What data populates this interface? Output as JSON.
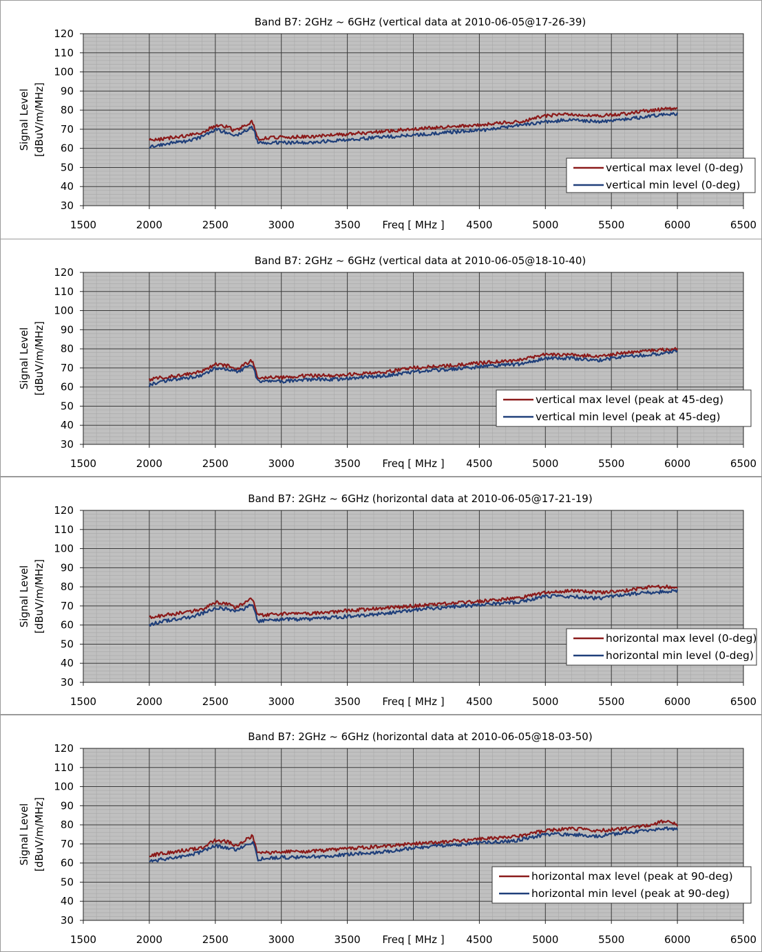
{
  "chart_data": [
    {
      "type": "line",
      "title": "Band B7: 2GHz ~ 6GHz (vertical data at 2010-06-05@17-26-39)",
      "xlabel": "Freq [ MHz ]",
      "ylabel_lines": [
        "Signal Level",
        "[dBuV/m/MHz]"
      ],
      "xlim": [
        1500,
        6500
      ],
      "ylim": [
        30,
        120
      ],
      "xticks": [
        "1500",
        "2000",
        "2500",
        "3000",
        "3500",
        "4500",
        "5000",
        "5500",
        "6000",
        "6500"
      ],
      "yticks": [
        "120",
        "110",
        "100",
        "90",
        "80",
        "70",
        "60",
        "50",
        "40",
        "30"
      ],
      "grid": true,
      "legend_position": "bottom-right",
      "series": [
        {
          "name": "vertical max level (0-deg)",
          "color": "#8b1a1a",
          "x": [
            2000,
            2100,
            2200,
            2300,
            2400,
            2500,
            2600,
            2650,
            2700,
            2780,
            2800,
            2820,
            3000,
            3200,
            3400,
            3600,
            3800,
            4000,
            4200,
            4400,
            4600,
            4800,
            5000,
            5200,
            5400,
            5600,
            5800,
            6000
          ],
          "y": [
            64,
            65,
            66,
            67,
            68,
            72,
            71,
            69,
            71,
            74,
            70,
            65,
            66,
            66,
            67,
            68,
            69,
            70,
            71,
            72,
            73,
            74,
            77,
            78,
            77,
            78,
            80,
            81
          ]
        },
        {
          "name": "vertical min level (0-deg)",
          "color": "#1f3f7a",
          "x": [
            2000,
            2100,
            2200,
            2300,
            2400,
            2500,
            2600,
            2650,
            2700,
            2780,
            2800,
            2820,
            3000,
            3200,
            3400,
            3600,
            3800,
            4000,
            4200,
            4400,
            4600,
            4800,
            5000,
            5200,
            5400,
            5600,
            5800,
            6000
          ],
          "y": [
            61,
            62,
            63,
            64,
            66,
            70,
            68,
            67,
            68,
            71,
            68,
            63,
            63,
            63,
            64,
            65,
            66,
            67,
            68,
            69,
            70,
            72,
            74,
            75,
            74,
            75,
            77,
            78
          ]
        }
      ]
    },
    {
      "type": "line",
      "title": "Band B7: 2GHz ~ 6GHz (vertical data at 2010-06-05@18-10-40)",
      "xlabel": "Freq [ MHz ]",
      "ylabel_lines": [
        "Signal Level",
        "[dBuV/m/MHz]"
      ],
      "xlim": [
        1500,
        6500
      ],
      "ylim": [
        30,
        120
      ],
      "xticks": [
        "1500",
        "2000",
        "2500",
        "3000",
        "3500",
        "4500",
        "5000",
        "5500",
        "6000",
        "6500"
      ],
      "yticks": [
        "120",
        "110",
        "100",
        "90",
        "80",
        "70",
        "60",
        "50",
        "40",
        "30"
      ],
      "grid": true,
      "legend_position": "bottom-right",
      "series": [
        {
          "name": "vertical max level (peak at 45-deg)",
          "color": "#8b1a1a",
          "x": [
            2000,
            2100,
            2200,
            2300,
            2400,
            2500,
            2600,
            2650,
            2700,
            2780,
            2800,
            2820,
            3000,
            3200,
            3400,
            3600,
            3800,
            4000,
            4200,
            4400,
            4600,
            4800,
            5000,
            5200,
            5400,
            5600,
            5800,
            6000
          ],
          "y": [
            64,
            65,
            66,
            67,
            68,
            72,
            71,
            69,
            71,
            74,
            70,
            65,
            65,
            66,
            66,
            67,
            68,
            70,
            71,
            72,
            73,
            74,
            77,
            77,
            76,
            78,
            79,
            80
          ]
        },
        {
          "name": "vertical min level (peak at 45-deg)",
          "color": "#1f3f7a",
          "x": [
            2000,
            2100,
            2200,
            2300,
            2400,
            2500,
            2600,
            2650,
            2700,
            2780,
            2800,
            2820,
            3000,
            3200,
            3400,
            3600,
            3800,
            4000,
            4200,
            4400,
            4600,
            4800,
            5000,
            5200,
            5400,
            5600,
            5800,
            6000
          ],
          "y": [
            61,
            63,
            64,
            65,
            66,
            70,
            69,
            68,
            69,
            72,
            68,
            63,
            63,
            64,
            64,
            65,
            66,
            68,
            69,
            70,
            71,
            72,
            75,
            75,
            74,
            76,
            77,
            79
          ]
        }
      ]
    },
    {
      "type": "line",
      "title": "Band B7: 2GHz ~ 6GHz (horizontal data at 2010-06-05@17-21-19)",
      "xlabel": "Freq [ MHz ]",
      "ylabel_lines": [
        "Signal Level",
        "[dBuV/m/MHz]"
      ],
      "xlim": [
        1500,
        6500
      ],
      "ylim": [
        30,
        120
      ],
      "xticks": [
        "1500",
        "2000",
        "2500",
        "3000",
        "3500",
        "4500",
        "5000",
        "5500",
        "6000",
        "6500"
      ],
      "yticks": [
        "120",
        "110",
        "100",
        "90",
        "80",
        "70",
        "60",
        "50",
        "40",
        "30"
      ],
      "grid": true,
      "legend_position": "bottom-right",
      "series": [
        {
          "name": "horizontal max level (0-deg)",
          "color": "#8b1a1a",
          "x": [
            2000,
            2100,
            2200,
            2300,
            2400,
            2500,
            2600,
            2650,
            2700,
            2780,
            2800,
            2820,
            3000,
            3200,
            3400,
            3600,
            3800,
            4000,
            4200,
            4400,
            4600,
            4800,
            5000,
            5200,
            5400,
            5600,
            5800,
            6000
          ],
          "y": [
            64,
            65,
            66,
            67,
            68,
            72,
            71,
            69,
            71,
            74,
            70,
            65,
            66,
            66,
            67,
            68,
            69,
            70,
            71,
            72,
            73,
            74,
            77,
            78,
            77,
            78,
            80,
            80
          ]
        },
        {
          "name": "horizontal min level (0-deg)",
          "color": "#1f3f7a",
          "x": [
            2000,
            2100,
            2200,
            2300,
            2400,
            2500,
            2600,
            2650,
            2700,
            2780,
            2800,
            2820,
            3000,
            3200,
            3400,
            3600,
            3800,
            4000,
            4200,
            4400,
            4600,
            4800,
            5000,
            5200,
            5400,
            5600,
            5800,
            6000
          ],
          "y": [
            60,
            62,
            63,
            64,
            66,
            69,
            68,
            67,
            68,
            71,
            68,
            62,
            63,
            63,
            64,
            65,
            66,
            68,
            69,
            70,
            71,
            72,
            75,
            75,
            74,
            76,
            77,
            78
          ]
        }
      ]
    },
    {
      "type": "line",
      "title": "Band B7: 2GHz ~ 6GHz (horizontal data at 2010-06-05@18-03-50)",
      "xlabel": "Freq [ MHz ]",
      "ylabel_lines": [
        "Signal Level",
        "[dBuV/m/MHz]"
      ],
      "xlim": [
        1500,
        6500
      ],
      "ylim": [
        30,
        120
      ],
      "xticks": [
        "1500",
        "2000",
        "2500",
        "3000",
        "3500",
        "4500",
        "5000",
        "5500",
        "6000",
        "6500"
      ],
      "yticks": [
        "120",
        "110",
        "100",
        "90",
        "80",
        "70",
        "60",
        "50",
        "40",
        "30"
      ],
      "grid": true,
      "legend_position": "bottom-right",
      "series": [
        {
          "name": "horizontal max level (peak at 90-deg)",
          "color": "#8b1a1a",
          "x": [
            2000,
            2100,
            2200,
            2300,
            2400,
            2500,
            2600,
            2650,
            2700,
            2780,
            2800,
            2820,
            3000,
            3200,
            3400,
            3600,
            3800,
            4000,
            4200,
            4400,
            4600,
            4800,
            5000,
            5200,
            5400,
            5600,
            5800,
            5900,
            6000
          ],
          "y": [
            64,
            65,
            66,
            67,
            68,
            72,
            71,
            69,
            71,
            74,
            70,
            65,
            66,
            66,
            67,
            68,
            69,
            70,
            71,
            72,
            73,
            74,
            77,
            78,
            77,
            78,
            80,
            82,
            80
          ]
        },
        {
          "name": "horizontal min level (peak at 90-deg)",
          "color": "#1f3f7a",
          "x": [
            2000,
            2100,
            2200,
            2300,
            2400,
            2500,
            2600,
            2650,
            2700,
            2780,
            2800,
            2820,
            3000,
            3200,
            3400,
            3600,
            3800,
            4000,
            4200,
            4400,
            4600,
            4800,
            5000,
            5200,
            5400,
            5600,
            5800,
            5900,
            6000
          ],
          "y": [
            61,
            62,
            63,
            64,
            66,
            69,
            68,
            67,
            68,
            71,
            68,
            62,
            63,
            63,
            64,
            65,
            66,
            68,
            69,
            70,
            71,
            72,
            75,
            75,
            74,
            76,
            77,
            78,
            78
          ]
        }
      ]
    }
  ]
}
